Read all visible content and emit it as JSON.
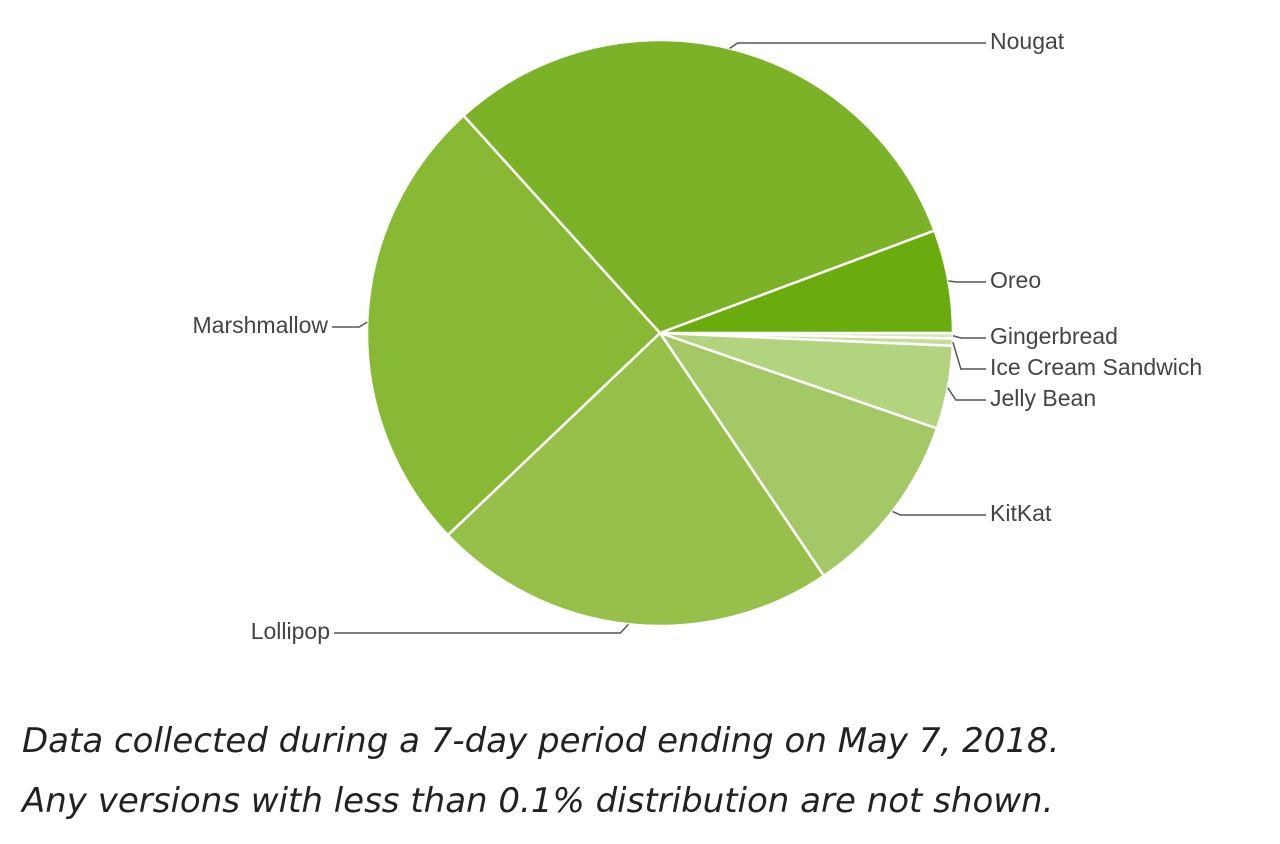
{
  "chart_data": {
    "type": "pie",
    "categories": [
      "Gingerbread",
      "Ice Cream Sandwich",
      "Jelly Bean",
      "KitKat",
      "Lollipop",
      "Marshmallow",
      "Nougat",
      "Oreo"
    ],
    "values": [
      0.3,
      0.4,
      4.6,
      10.3,
      22.4,
      25.5,
      31.1,
      5.7
    ],
    "colors": [
      "#d3e6b5",
      "#c4de99",
      "#b3d47e",
      "#a4c865",
      "#97c04a",
      "#88b935",
      "#7cb227",
      "#6aab0e"
    ],
    "notes": [
      "Data collected during a 7-day period ending on May 7, 2018.",
      "Any versions with less than 0.1% distribution are not shown."
    ]
  }
}
